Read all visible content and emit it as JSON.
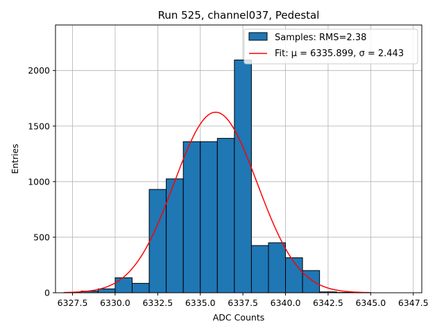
{
  "chart_data": {
    "type": "bar",
    "title": "Run 525, channel037, Pedestal",
    "xlabel": "ADC Counts",
    "ylabel": "Entries",
    "xlim": [
      6326.5,
      6348.0
    ],
    "ylim": [
      0,
      2410
    ],
    "grid": true,
    "xticks": [
      6327.5,
      6330.0,
      6332.5,
      6335.0,
      6337.5,
      6340.0,
      6342.5,
      6345.0,
      6347.5
    ],
    "xtick_labels": [
      "6327.5",
      "6330.0",
      "6332.5",
      "6335.0",
      "6337.5",
      "6340.0",
      "6342.5",
      "6345.0",
      "6347.5"
    ],
    "yticks": [
      0,
      500,
      1000,
      1500,
      2000
    ],
    "ytick_labels": [
      "0",
      "500",
      "1000",
      "1500",
      "2000"
    ],
    "histogram": {
      "name": "Samples: RMS=2.38",
      "color": "#1f77b4",
      "bins": [
        {
          "left": 6327.0,
          "right": 6328.0,
          "value": 2
        },
        {
          "left": 6328.0,
          "right": 6329.0,
          "value": 15
        },
        {
          "left": 6329.0,
          "right": 6330.0,
          "value": 35
        },
        {
          "left": 6330.0,
          "right": 6331.0,
          "value": 135
        },
        {
          "left": 6331.0,
          "right": 6332.0,
          "value": 85
        },
        {
          "left": 6332.0,
          "right": 6333.0,
          "value": 930
        },
        {
          "left": 6333.0,
          "right": 6334.0,
          "value": 1025
        },
        {
          "left": 6334.0,
          "right": 6335.0,
          "value": 1360
        },
        {
          "left": 6335.0,
          "right": 6336.0,
          "value": 1360
        },
        {
          "left": 6336.0,
          "right": 6337.0,
          "value": 1390
        },
        {
          "left": 6337.0,
          "right": 6338.0,
          "value": 2095
        },
        {
          "left": 6338.0,
          "right": 6339.0,
          "value": 425
        },
        {
          "left": 6339.0,
          "right": 6340.0,
          "value": 450
        },
        {
          "left": 6340.0,
          "right": 6341.0,
          "value": 315
        },
        {
          "left": 6341.0,
          "right": 6342.0,
          "value": 200
        },
        {
          "left": 6342.0,
          "right": 6343.0,
          "value": 8
        },
        {
          "left": 6343.0,
          "right": 6344.0,
          "value": 3
        },
        {
          "left": 6344.0,
          "right": 6345.0,
          "value": 1
        }
      ]
    },
    "fit": {
      "name": "Fit: μ = 6335.899, σ = 2.443",
      "color": "#ff0000",
      "mu": 6335.899,
      "sigma": 2.443,
      "amplitude": 1625,
      "x_range": [
        6327.0,
        6345.0
      ]
    },
    "legend": {
      "position": "top-right",
      "entries": [
        "Samples: RMS=2.38",
        "Fit: μ = 6335.899, σ = 2.443"
      ]
    }
  }
}
